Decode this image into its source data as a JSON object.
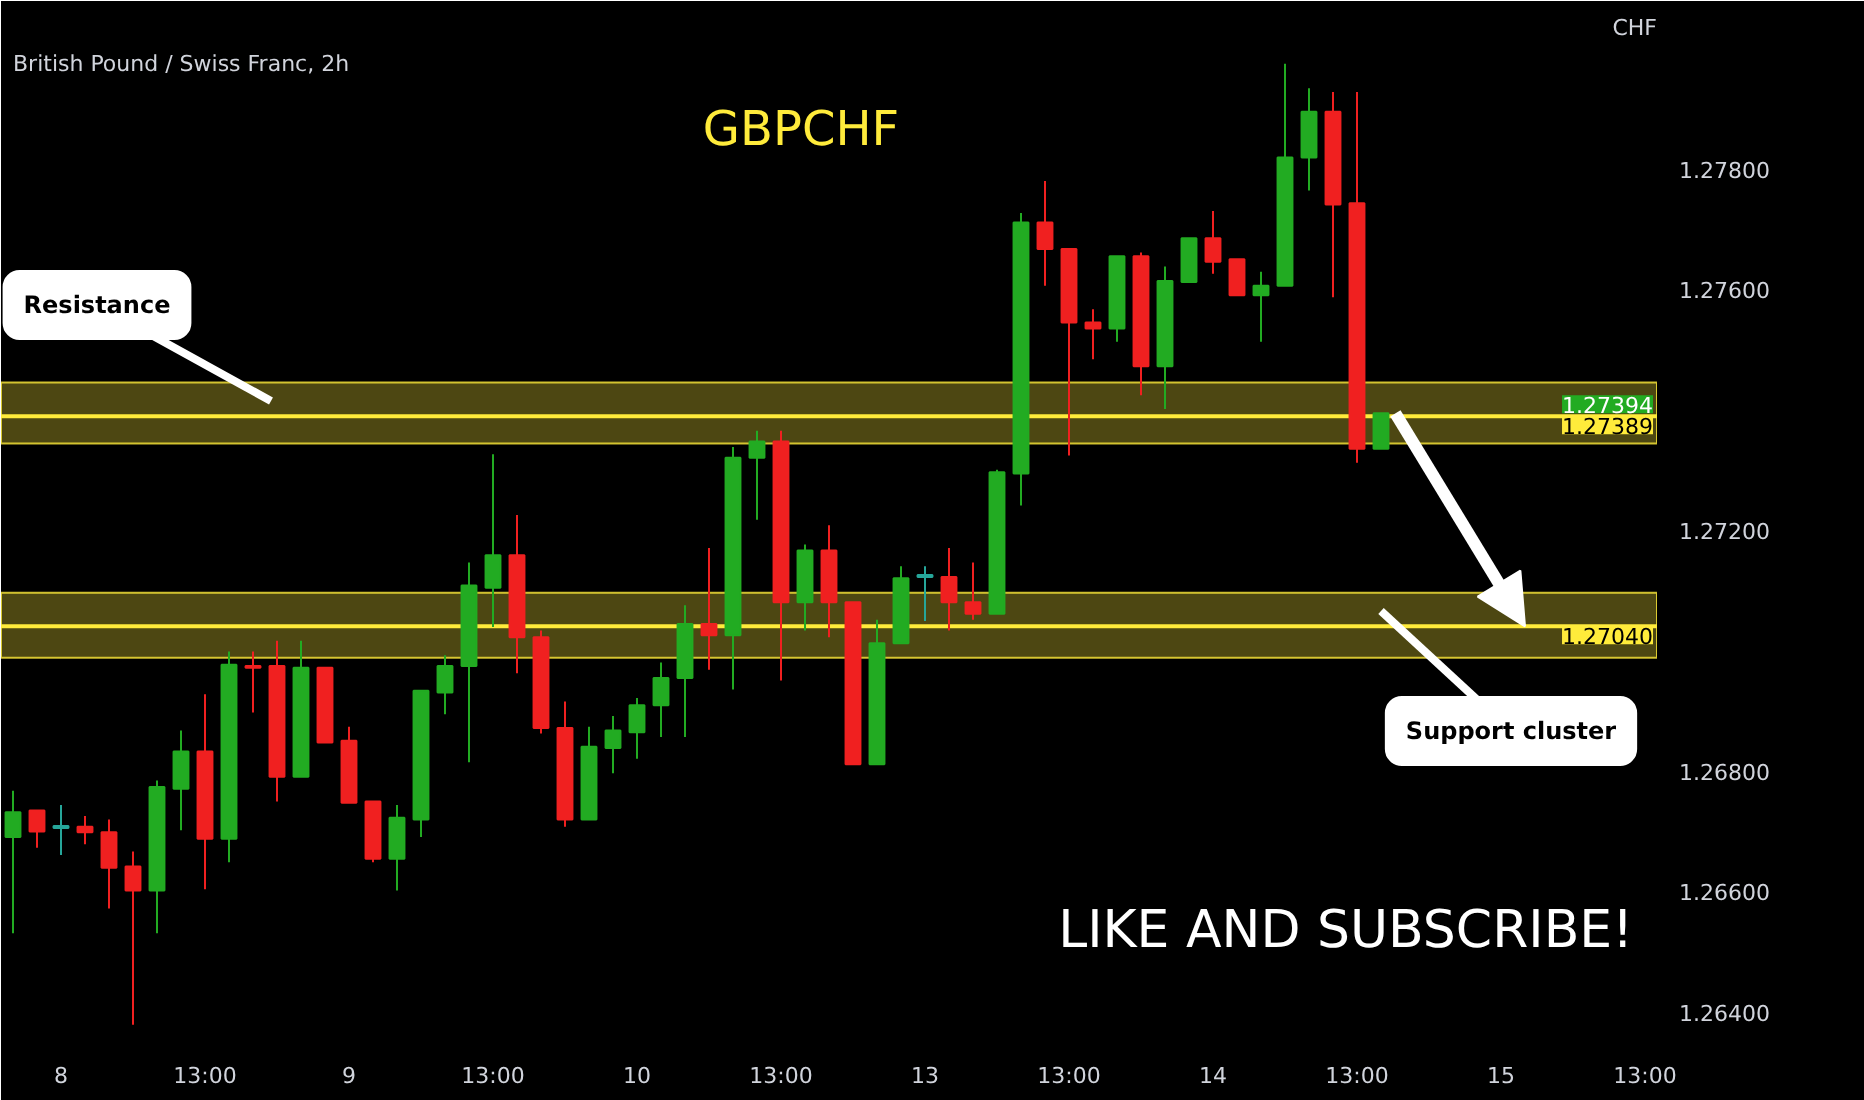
{
  "chart_data": {
    "type": "candlestick",
    "title": "GBPCHF",
    "subtitle": "British Pound / Swiss Franc, 2h",
    "ylabel": "CHF",
    "categories": [
      null,
      null,
      "8",
      null,
      null,
      null,
      null,
      null,
      "13:00",
      null,
      null,
      null,
      null,
      null,
      "9",
      null,
      null,
      null,
      null,
      null,
      "13:00",
      null,
      null,
      null,
      null,
      null,
      "10",
      null,
      null,
      null,
      null,
      null,
      "13:00",
      null,
      null,
      null,
      null,
      null,
      "13",
      null,
      null,
      null,
      null,
      null,
      "13:00",
      null,
      null,
      null,
      null,
      null,
      "14",
      null,
      null,
      null,
      null,
      null,
      "13:00",
      null,
      null,
      null,
      null,
      null,
      "15",
      null,
      null,
      null,
      null,
      null,
      "13:00"
    ],
    "ohlc": [
      [
        1.2669,
        1.26767,
        1.2653,
        1.26731
      ],
      [
        1.26734,
        1.26734,
        1.26672,
        1.26699
      ],
      [
        1.26705,
        1.26743,
        1.2666,
        1.26707
      ],
      [
        1.26707,
        1.26725,
        1.26678,
        1.26698
      ],
      [
        1.26698,
        1.26719,
        1.26571,
        1.26639
      ],
      [
        1.26641,
        1.26666,
        1.26378,
        1.26601
      ],
      [
        1.26601,
        1.26784,
        1.2653,
        1.26773
      ],
      [
        1.2677,
        1.26867,
        1.26701,
        1.26832
      ],
      [
        1.26832,
        1.26927,
        1.26603,
        1.26687
      ],
      [
        1.26687,
        1.26998,
        1.26648,
        1.26976
      ],
      [
        1.26974,
        1.26998,
        1.26897,
        1.26971
      ],
      [
        1.26974,
        1.27016,
        1.26749,
        1.2679
      ],
      [
        1.2679,
        1.27016,
        1.2679,
        1.26971
      ],
      [
        1.26971,
        1.26971,
        1.26847,
        1.26847
      ],
      [
        1.2685,
        1.26873,
        1.26747,
        1.26747
      ],
      [
        1.26749,
        1.26749,
        1.26648,
        1.26654
      ],
      [
        1.26654,
        1.26743,
        1.26601,
        1.26722
      ],
      [
        1.26719,
        1.26933,
        1.2669,
        1.26933
      ],
      [
        1.2693,
        1.26992,
        1.26894,
        1.26974
      ],
      [
        1.26974,
        1.27146,
        1.26814,
        1.27108
      ],
      [
        1.27104,
        1.27326,
        1.27039,
        1.27158
      ],
      [
        1.27158,
        1.27225,
        1.26962,
        1.27022
      ],
      [
        1.27022,
        1.27033,
        1.26862,
        1.26871
      ],
      [
        1.26871,
        1.26915,
        1.26707,
        1.26719
      ],
      [
        1.26719,
        1.26873,
        1.26719,
        1.2684
      ],
      [
        1.26838,
        1.26891,
        1.26796,
        1.26867
      ],
      [
        1.26864,
        1.26921,
        1.2682,
        1.26909
      ],
      [
        1.26909,
        1.2698,
        1.26856,
        1.26954
      ],
      [
        1.26954,
        1.27075,
        1.26856,
        1.27044
      ],
      [
        1.27044,
        1.2717,
        1.26968,
        1.27025
      ],
      [
        1.27025,
        1.27338,
        1.26935,
        1.2732
      ],
      [
        1.2732,
        1.27365,
        1.27217,
        1.27347
      ],
      [
        1.27347,
        1.27365,
        1.2695,
        1.2708
      ],
      [
        1.2708,
        1.27176,
        1.27033,
        1.27166
      ],
      [
        1.27166,
        1.27208,
        1.27022,
        1.2708
      ],
      [
        1.2708,
        1.2708,
        1.26811,
        1.26811
      ],
      [
        1.26811,
        1.27051,
        1.26811,
        1.27012
      ],
      [
        1.27012,
        1.2714,
        1.27012,
        1.2712
      ],
      [
        1.27122,
        1.2714,
        1.27049,
        1.27122
      ],
      [
        1.27122,
        1.2717,
        1.27033,
        1.2708
      ],
      [
        1.2708,
        1.27146,
        1.27051,
        1.27061
      ],
      [
        1.27061,
        1.273,
        1.27061,
        1.27296
      ],
      [
        1.27294,
        1.27727,
        1.27241,
        1.27711
      ],
      [
        1.27711,
        1.2778,
        1.27606,
        1.27667
      ],
      [
        1.27667,
        1.27667,
        1.27324,
        1.27545
      ],
      [
        1.27545,
        1.27567,
        1.27484,
        1.27535
      ],
      [
        1.27535,
        1.27655,
        1.27513,
        1.27655
      ],
      [
        1.27655,
        1.27661,
        1.27424,
        1.27472
      ],
      [
        1.27472,
        1.27638,
        1.27401,
        1.27614
      ],
      [
        1.27612,
        1.27685,
        1.27612,
        1.27685
      ],
      [
        1.27685,
        1.2773,
        1.27626,
        1.27646
      ],
      [
        1.2765,
        1.2765,
        1.2759,
        1.2759
      ],
      [
        1.2759,
        1.27629,
        1.27513,
        1.27606
      ],
      [
        1.27606,
        1.27975,
        1.27606,
        1.27819
      ],
      [
        1.27819,
        1.27934,
        1.27764,
        1.27895
      ],
      [
        1.27895,
        1.27928,
        1.27587,
        1.27741
      ],
      [
        1.27743,
        1.27928,
        1.27312,
        1.27335
      ],
      [
        1.27335,
        1.27394,
        1.27335,
        1.27394
      ],
      null,
      null,
      null,
      null,
      null,
      null,
      null,
      null,
      null,
      null,
      null
    ],
    "colors": [
      "#22ab22",
      "#f02020",
      "#26a69a",
      "#f02020",
      "#f02020",
      "#f02020",
      "#22ab22",
      "#22ab22",
      "#f02020",
      "#22ab22",
      "#f02020",
      "#f02020",
      "#22ab22",
      "#f02020",
      "#f02020",
      "#f02020",
      "#22ab22",
      "#22ab22",
      "#22ab22",
      "#22ab22",
      "#22ab22",
      "#f02020",
      "#f02020",
      "#f02020",
      "#22ab22",
      "#22ab22",
      "#22ab22",
      "#22ab22",
      "#22ab22",
      "#f02020",
      "#22ab22",
      "#22ab22",
      "#f02020",
      "#22ab22",
      "#f02020",
      "#f02020",
      "#22ab22",
      "#22ab22",
      "#26a69a",
      "#f02020",
      "#f02020",
      "#22ab22",
      "#22ab22",
      "#f02020",
      "#f02020",
      "#f02020",
      "#22ab22",
      "#f02020",
      "#22ab22",
      "#22ab22",
      "#f02020",
      "#f02020",
      "#22ab22",
      "#22ab22",
      "#22ab22",
      "#f02020",
      "#f02020",
      "#22ab22",
      null,
      null,
      null,
      null,
      null,
      null,
      null,
      null,
      null,
      null,
      null
    ],
    "ylim": [
      1.26351,
      1.27996
    ],
    "yticks": [
      {
        "value": 1.264,
        "label": "1.26400"
      },
      {
        "value": 1.266,
        "label": "1.26600"
      },
      {
        "value": 1.268,
        "label": "1.26800"
      },
      {
        "value": 1.272,
        "label": "1.27200"
      },
      {
        "value": 1.276,
        "label": "1.27600"
      },
      {
        "value": 1.278,
        "label": "1.27800"
      }
    ],
    "ref_lines": [
      {
        "axis": "y",
        "value": 1.27389,
        "label": "1.27389",
        "color": "#ffeb3b"
      },
      {
        "axis": "y",
        "value": 1.2704,
        "label": "1.27040",
        "color": "#ffeb3b"
      }
    ],
    "bands": [
      {
        "axis": "y",
        "from": 1.27344,
        "to": 1.27445,
        "color": "#ffeb3b"
      },
      {
        "axis": "y",
        "from": 1.26988,
        "to": 1.27096,
        "color": "#ffeb3b"
      }
    ],
    "annotations": [
      "Resistance",
      "Support cluster",
      {
        "text": "1.27394",
        "y": 1.27394
      },
      "LIKE AND SUBSCRIBE!"
    ],
    "grid": false
  }
}
